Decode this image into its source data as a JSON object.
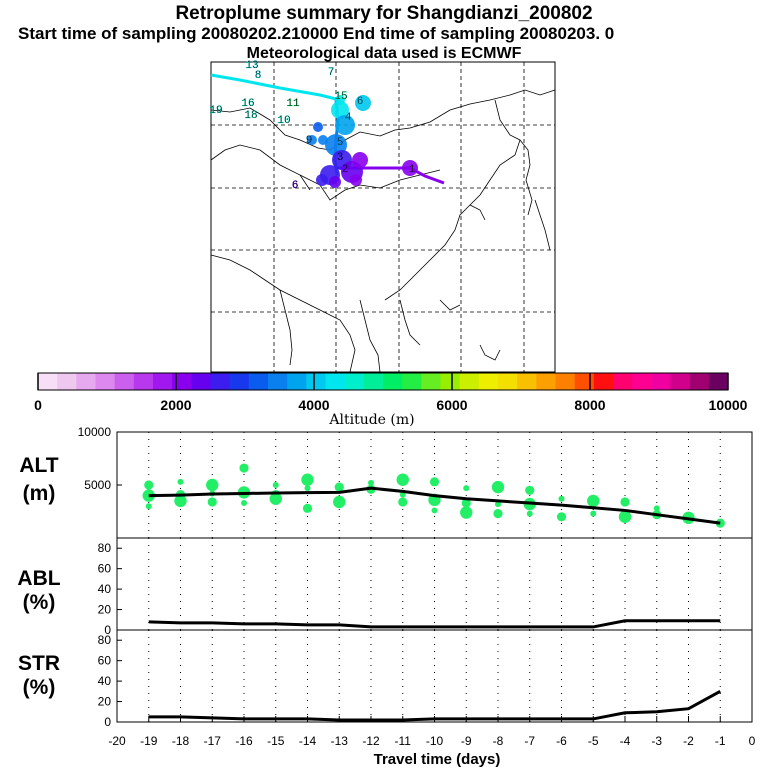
{
  "header": {
    "title": "Retroplume summary for Shangdianzi_200802",
    "subtitle": "Start time of sampling 20080202.210000     End time of sampling 20080203.     0",
    "met": "Meteorological data used is ECMWF"
  },
  "colorbar": {
    "label": "Altitude (m)",
    "ticks": [
      "0",
      "2000",
      "4000",
      "6000",
      "8000",
      "10000"
    ],
    "colors": [
      "#f7e0f7",
      "#efc8ef",
      "#e6a8ef",
      "#dc88ef",
      "#cc60ee",
      "#b838ee",
      "#a018ee",
      "#8800ee",
      "#6600ee",
      "#3c1cee",
      "#1838ee",
      "#0a5cee",
      "#0a80ee",
      "#00a4ee",
      "#00c8ee",
      "#00e6ee",
      "#00eecc",
      "#00ee9a",
      "#00ee66",
      "#22ee44",
      "#66ee22",
      "#99ee00",
      "#ccee00",
      "#eeee00",
      "#f4e000",
      "#f8c000",
      "#fba000",
      "#fd8000",
      "#ff5000",
      "#ff1010",
      "#ff0070",
      "#ff0090",
      "#f000a0",
      "#d0008c",
      "#a00070",
      "#6a0060"
    ]
  },
  "map": {
    "trajectory_labels": [
      {
        "t": "13",
        "c": "#00e6ee"
      },
      {
        "t": "8",
        "c": "#00e6ee"
      },
      {
        "t": "7",
        "c": "#00e6ee"
      },
      {
        "t": "15",
        "c": "#00ee9a"
      },
      {
        "t": "16",
        "c": "#00eecc"
      },
      {
        "t": "11",
        "c": "#00ee66"
      },
      {
        "t": "18",
        "c": "#00eecc"
      },
      {
        "t": "19",
        "c": "#00eecc"
      },
      {
        "t": "10",
        "c": "#00eecc"
      },
      {
        "t": "6",
        "c": "#00c8ee"
      },
      {
        "t": "4",
        "c": "#00c8ee"
      },
      {
        "t": "9",
        "c": "#0a80ee"
      },
      {
        "t": "5",
        "c": "#00a4ee"
      },
      {
        "t": "3",
        "c": "#3c1cee"
      },
      {
        "t": "2",
        "c": "#6600ee"
      },
      {
        "t": "1",
        "c": "#8800ee"
      },
      {
        "t": "6",
        "c": "#6600ee"
      }
    ]
  },
  "chart_data": [
    {
      "type": "line",
      "panel": "ALT",
      "ylabel": "ALT (m)",
      "ylim": [
        0,
        10000
      ],
      "yticks": [
        "10000",
        "5000"
      ],
      "x": [
        -19,
        -18,
        -17,
        -16,
        -15,
        -14,
        -13,
        -12,
        -11,
        -10,
        -9,
        -8,
        -7,
        -6,
        -5,
        -4,
        -3,
        -2,
        -1
      ],
      "series": [
        {
          "name": "median altitude",
          "values": [
            4000,
            4050,
            4150,
            4200,
            4250,
            4280,
            4300,
            4700,
            4400,
            4000,
            3700,
            3500,
            3300,
            3100,
            2850,
            2600,
            2200,
            1800,
            1400
          ]
        },
        {
          "name": "cluster points",
          "values": [
            3000,
            3200,
            3400,
            3300,
            3600,
            2800,
            3400,
            4600,
            3500,
            2700,
            2500,
            2200,
            2400,
            1900,
            2300,
            2000,
            1900,
            1700,
            1400
          ]
        }
      ],
      "clusters": [
        {
          "x": -19,
          "v": [
            5000,
            4000,
            3000
          ]
        },
        {
          "x": -18,
          "v": [
            5300,
            4100,
            3500
          ]
        },
        {
          "x": -17,
          "v": [
            5000,
            4200,
            3400
          ]
        },
        {
          "x": -16,
          "v": [
            6600,
            4300,
            3300
          ]
        },
        {
          "x": -15,
          "v": [
            5000,
            4100,
            3700
          ]
        },
        {
          "x": -14,
          "v": [
            5500,
            4700,
            2800
          ]
        },
        {
          "x": -13,
          "v": [
            4800,
            3400
          ]
        },
        {
          "x": -12,
          "v": [
            5200,
            4600
          ]
        },
        {
          "x": -11,
          "v": [
            5500,
            4100,
            3400
          ]
        },
        {
          "x": -10,
          "v": [
            5300,
            3600,
            2600
          ]
        },
        {
          "x": -9,
          "v": [
            4700,
            3300,
            2400
          ]
        },
        {
          "x": -8,
          "v": [
            4800,
            3200,
            2300
          ]
        },
        {
          "x": -7,
          "v": [
            4500,
            3200,
            2300
          ]
        },
        {
          "x": -6,
          "v": [
            3700,
            2000
          ]
        },
        {
          "x": -5,
          "v": [
            3500,
            2300
          ]
        },
        {
          "x": -4,
          "v": [
            3400,
            2000
          ]
        },
        {
          "x": -3,
          "v": [
            2800,
            2200
          ]
        },
        {
          "x": -2,
          "v": [
            1900
          ]
        },
        {
          "x": -1,
          "v": [
            1400
          ]
        }
      ]
    },
    {
      "type": "line",
      "panel": "ABL",
      "ylabel": "ABL (%)",
      "ylim": [
        0,
        90
      ],
      "yticks": [
        "80",
        "60",
        "40",
        "20",
        "0"
      ],
      "x": [
        -19,
        -18,
        -17,
        -16,
        -15,
        -14,
        -13,
        -12,
        -11,
        -10,
        -9,
        -8,
        -7,
        -6,
        -5,
        -4,
        -3,
        -2,
        -1
      ],
      "values": [
        8,
        7,
        7,
        6,
        6,
        5,
        5,
        3,
        3,
        3,
        3,
        3,
        3,
        3,
        3,
        9,
        9,
        9,
        9
      ]
    },
    {
      "type": "line",
      "panel": "STR",
      "ylabel": "STR (%)",
      "ylim": [
        0,
        90
      ],
      "yticks": [
        "80",
        "60",
        "40",
        "20",
        "0"
      ],
      "x": [
        -19,
        -18,
        -17,
        -16,
        -15,
        -14,
        -13,
        -12,
        -11,
        -10,
        -9,
        -8,
        -7,
        -6,
        -5,
        -4,
        -3,
        -2,
        -1
      ],
      "values": [
        5,
        5,
        4,
        3,
        3,
        3,
        2,
        2,
        2,
        3,
        3,
        3,
        3,
        3,
        3,
        9,
        10,
        13,
        30
      ],
      "xlabel": "Travel time (days)",
      "xticks": [
        "-20",
        "-19",
        "-18",
        "-17",
        "-16",
        "-15",
        "-14",
        "-13",
        "-12",
        "-11",
        "-10",
        "-9",
        "-8",
        "-7",
        "-6",
        "-5",
        "-4",
        "-3",
        "-2",
        "-1",
        "0"
      ]
    }
  ],
  "panel_labels": {
    "alt": [
      "ALT",
      "(m)"
    ],
    "abl": [
      "ABL",
      "(%)"
    ],
    "str": [
      "STR",
      "(%)"
    ]
  }
}
